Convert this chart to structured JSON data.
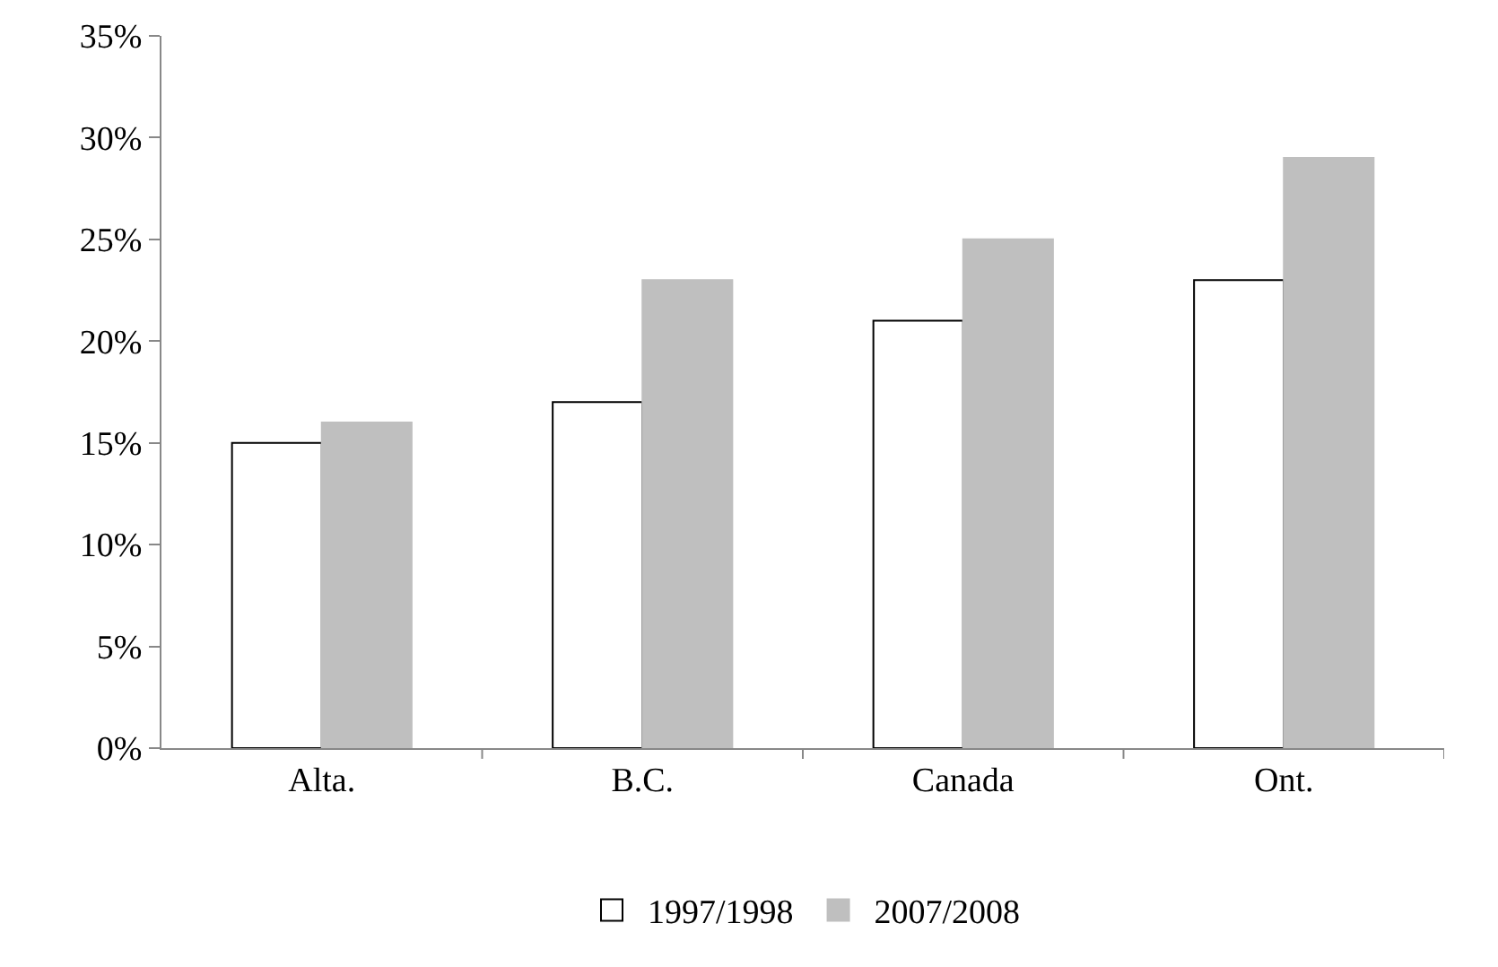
{
  "chart_data": {
    "type": "bar",
    "categories": [
      "Alta.",
      "B.C.",
      "Canada",
      "Ont."
    ],
    "series": [
      {
        "name": "1997/1998",
        "color": "#ffffff",
        "values": [
          15,
          17,
          21,
          23
        ]
      },
      {
        "name": "2007/2008",
        "color": "#bfbfbf",
        "values": [
          16,
          23,
          25,
          29
        ]
      }
    ],
    "ylim": [
      0,
      35
    ],
    "yticks": [
      {
        "value": 0,
        "label": "0%"
      },
      {
        "value": 5,
        "label": "5%"
      },
      {
        "value": 10,
        "label": "10%"
      },
      {
        "value": 15,
        "label": "15%"
      },
      {
        "value": 20,
        "label": "20%"
      },
      {
        "value": 25,
        "label": "25%"
      },
      {
        "value": 30,
        "label": "30%"
      },
      {
        "value": 35,
        "label": "35%"
      }
    ],
    "grid": false,
    "legend": "bottom"
  }
}
